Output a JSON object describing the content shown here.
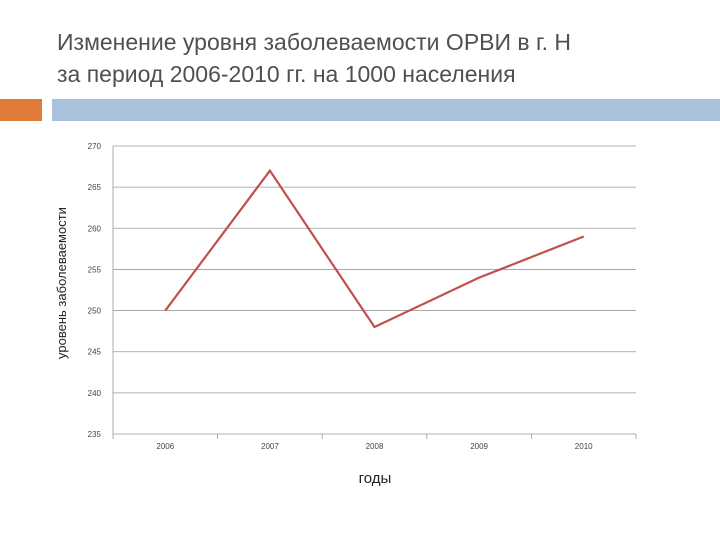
{
  "slide": {
    "title": "Изменение уровня заболеваемости ОРВИ в г. Н\nза период 2006-2010 гг. на 1000 населения",
    "accent_orange": "#e07b39",
    "accent_blue": "#a9c1db"
  },
  "chart_data": {
    "type": "line",
    "title": "Изменение уровня заболеваемости ОРВИ в г. Н за период 2006-2010 гг. на 1000 населения",
    "xlabel": "годы",
    "ylabel": "уровень заболеваемости",
    "categories": [
      "2006",
      "2007",
      "2008",
      "2009",
      "2010"
    ],
    "series": [
      {
        "values": [
          250,
          267,
          248,
          254,
          259
        ],
        "color": "#c0504d"
      }
    ],
    "ylim": [
      235,
      270
    ],
    "yticks": [
      235,
      240,
      245,
      250,
      255,
      260,
      265,
      270
    ],
    "grid": true,
    "legend": "none"
  }
}
